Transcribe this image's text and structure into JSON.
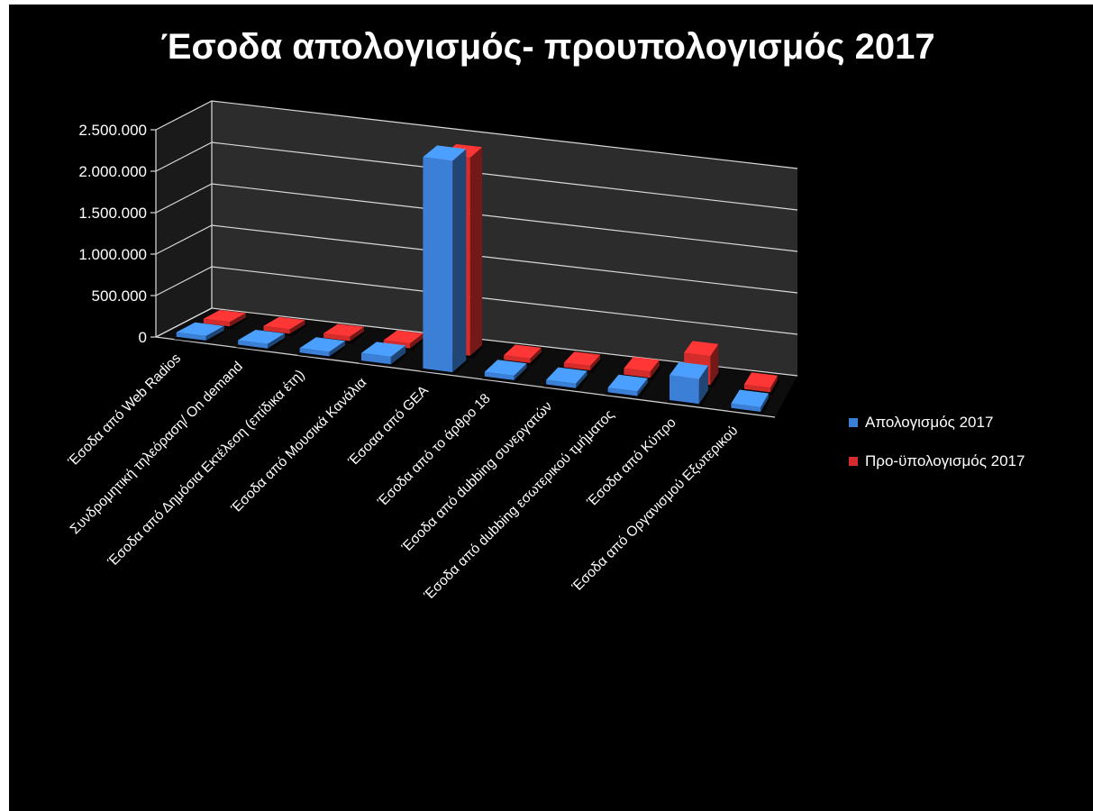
{
  "chart_data": {
    "type": "bar",
    "title": "Έσοδα απολογισμός- προυπολογισμός 2017",
    "xlabel": "",
    "ylabel": "",
    "ylim": [
      0,
      2500000
    ],
    "yticks": [
      "0",
      "500.000",
      "1.000.000",
      "1.500.000",
      "2.000.000",
      "2.500.000"
    ],
    "grid": true,
    "legend_position": "right",
    "categories": [
      "Έσοδα από Web Radios",
      "Συνδρομητική τηλεόραση/ On demand",
      "Έσοδα από Δημόσια Εκτέλεση (επίδικα έτη)",
      "Έσοδα από Μουσικά Κανάλια",
      "Έσοαα από GEA",
      "Έσοδα από το άρθρο 18",
      "Έσοδα από dubbing συνεργατών",
      "Έσοδα από dubbing εσωτερικού τμήματος",
      "Έσοδα από Κύπρο",
      "Έσοδα από Οργανισμού Εξωτερικού"
    ],
    "series": [
      {
        "name": "Απολογισμός 2017",
        "color": "#3b7fd6",
        "values": [
          20000,
          20000,
          25000,
          90000,
          2550000,
          35000,
          45000,
          55000,
          300000,
          30000
        ]
      },
      {
        "name": "Προ-ϋπολογισμός 2017",
        "color": "#d42b2b",
        "values": [
          10000,
          10000,
          10000,
          60000,
          2390000,
          30000,
          50000,
          75000,
          350000,
          15000
        ]
      }
    ]
  }
}
